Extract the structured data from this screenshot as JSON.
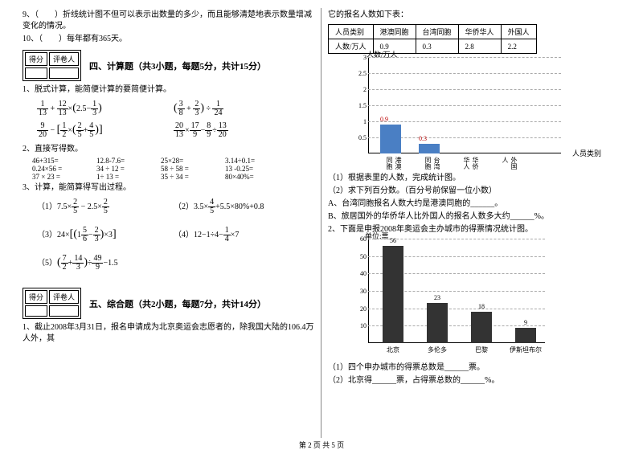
{
  "q9": "9、（　　）折线统计图不但可以表示出数量的多少，而且能够清楚地表示数量增减变化的情况。",
  "q10": "10、（　　）每年都有365天。",
  "sec4": {
    "score": "得分",
    "marker": "评卷人",
    "title": "四、计算题（共3小题，每题5分，共计15分）"
  },
  "sec5": {
    "score": "得分",
    "marker": "评卷人",
    "title": "五、综合题（共2小题，每题7分，共计14分）"
  },
  "p1_1": "1、脱式计算，能简便计算的要简便计算。",
  "p1_2": "2、直接写得数。",
  "p1_3": "3、计算，能简算得写出过程。",
  "calc": {
    "r1": [
      "46+315=",
      "12.8-7.6=",
      "25×28=",
      "3.14÷0.1="
    ],
    "r2": [
      "0.24×56 =",
      "34 ÷ 12 =",
      "58 ÷ 58 =",
      "13 -0.25="
    ],
    "r3": [
      "37 × 23 =",
      "1÷ 13 =",
      "35 ÷ 34 =",
      "80×40%="
    ]
  },
  "sec5_q1": "1、截止2008年3月31日，报名申请成为北京奥运会志愿者的，除我国大陆的106.4万人外，其",
  "right_top": "它的报名人数如下表：",
  "tbl": {
    "h": [
      "人员类别",
      "港澳同胞",
      "台湾同胞",
      "华侨华人",
      "外国人"
    ],
    "r": [
      "人数/万人",
      "0.9",
      "0.3",
      "2.8",
      "2.2"
    ]
  },
  "chart1": {
    "ytitle": "人数/万人",
    "xtitle": "人员类别",
    "yticks": [
      "3",
      "2.5",
      "2",
      "1.5",
      "1",
      "0.5"
    ],
    "cats": [
      "港澳同胞",
      "台湾同胞",
      "华侨华人",
      "外国人"
    ],
    "vals": [
      0.9,
      0.3,
      null,
      null
    ],
    "labels": [
      "0.9",
      "0.3"
    ],
    "bar_color": "#4a7fc4",
    "ymax": 3
  },
  "r_q1": "（1）根据表里的人数，完成统计图。",
  "r_q2": "（2）求下列百分数。（百分号前保留一位小数）",
  "r_q2a": "A、台湾同胞报名人数大约是港澳同胞的______。",
  "r_q2b": "B、旅居国外的华侨华人比外国人的报名人数多大约______%。",
  "r2_intro": "2、下面是申报2008年奥运会主办城市的得票情况统计图。",
  "chart2": {
    "ytitle": "单位:票",
    "yticks": [
      "60",
      "50",
      "40",
      "30",
      "20",
      "10"
    ],
    "cats": [
      "北京",
      "多伦多",
      "巴黎",
      "伊斯坦布尔"
    ],
    "vals": [
      56,
      23,
      18,
      9
    ],
    "ymax": 60,
    "bar_color": "#333333"
  },
  "r2_q1": "（1）四个申办城市的得票总数是______票。",
  "r2_q2": "（2）北京得______票，占得票总数的______%。",
  "footer": "第 2 页 共 5 页",
  "eq": {
    "e1a_1_13": "1",
    "e1a_13": "13",
    "e1a_12": "12",
    "e1a_25": "2.5",
    "e1a_1_3n": "1",
    "e1a_1_3d": "3",
    "e1b_3": "3",
    "e1b_8": "8",
    "e1b_2": "2",
    "e1b_3b": "3",
    "e1b_1": "1",
    "e1b_24": "24",
    "e2a_9": "9",
    "e2a_20": "20",
    "e2a_1": "1",
    "e2a_2": "2",
    "e2a_2b": "2",
    "e2a_5": "5",
    "e2a_4": "4",
    "e2a_5b": "5",
    "e2b_20": "20",
    "e2b_13": "13",
    "e2b_17": "17",
    "e2b_9": "9",
    "e2b_8": "8",
    "e2b_9b": "9",
    "e2b_13b": "13",
    "e2b_20b": "20",
    "p3_1": "（1）7.5×",
    "p3_1f2": "2",
    "p3_1f5": "5",
    "p3_1m": " − 2.5×",
    "p3_2": "（2）",
    "p3_2_35": "3.5×",
    "p3_2_4": "4",
    "p3_2_5": "5",
    "p3_2r": "+5.5×80%+0.8",
    "p3_3": "（3）",
    "p3_3_24": "24×",
    "p3_3_15n": "5",
    "p3_3_15d": "6",
    "p3_3_1": "1",
    "p3_3_2": "2",
    "p3_3_3": "3",
    "p3_3_x3": "×3",
    "p3_4": "（4）12−1÷4−",
    "p3_4_1": "1",
    "p3_4_4": "4",
    "p3_4_x7": "×7",
    "p3_5": "（5）",
    "p3_5_7": "7",
    "p3_5_2": "2",
    "p3_5_14": "14",
    "p3_5_3": "3",
    "p3_5_49": "49",
    "p3_5_9": "9",
    "p3_5_15": "−1.5"
  }
}
